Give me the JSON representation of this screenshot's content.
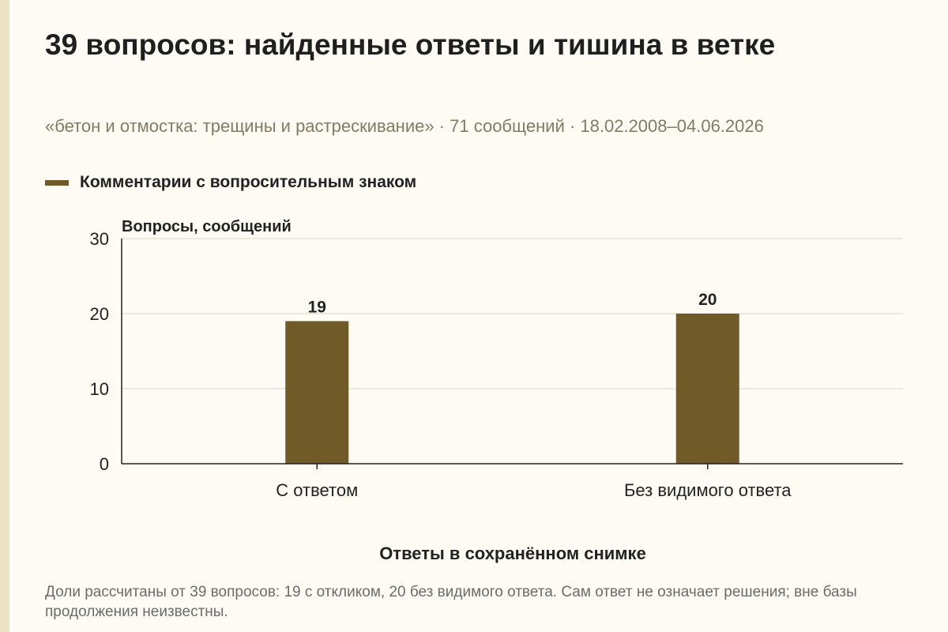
{
  "title": "39 вопросов: найденные ответы и тишина в ветке",
  "subtitle": "«бетон и отмостка: трещины и растрескивание» · 71 сообщений · 18.02.2008–04.06.2026",
  "legend": {
    "label": "Комментарии с вопросительным знаком",
    "color": "#705a28"
  },
  "footnote": "Доли рассчитаны от 39 вопросов: 19 с откликом, 20 без видимого ответа. Сам ответ не означает решения; вне базы продолжения неизвестны.",
  "chart_data": {
    "type": "bar",
    "categories": [
      "С ответом",
      "Без видимого ответа"
    ],
    "series": [
      {
        "name": "Комментарии с вопросительным знаком",
        "values": [
          19,
          20
        ],
        "color": "#705a28"
      }
    ],
    "value_labels": [
      "19",
      "20"
    ],
    "ylabel": "Вопросы, сообщений",
    "xlabel": "Ответы в сохранённом снимке",
    "ylim": [
      0,
      30
    ],
    "yticks": [
      0,
      10,
      20,
      30
    ],
    "grid": true,
    "legend_position": "top-left"
  }
}
